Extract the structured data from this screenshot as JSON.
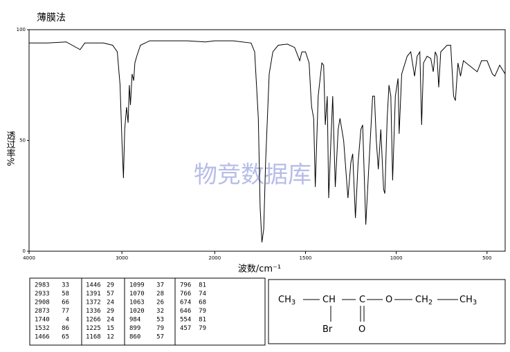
{
  "chart_data": {
    "type": "line",
    "title": "薄膜法",
    "x_label": "波数/cm⁻¹",
    "y_label": "透过率%",
    "watermark": "物竞数据库",
    "xlim": [
      4000,
      400
    ],
    "x_break": 2000,
    "xticks": [
      4000,
      3000,
      2000,
      1500,
      1000,
      500
    ],
    "ylim": [
      0,
      100
    ],
    "yticks": [
      0,
      50,
      100
    ],
    "color": "#000000",
    "x": [
      4000,
      3800,
      3600,
      3450,
      3400,
      3200,
      3100,
      3050,
      3020,
      3000,
      2983,
      2970,
      2950,
      2933,
      2920,
      2908,
      2890,
      2873,
      2860,
      2840,
      2800,
      2700,
      2500,
      2300,
      2100,
      2000,
      1900,
      1800,
      1780,
      1760,
      1750,
      1740,
      1730,
      1720,
      1700,
      1680,
      1650,
      1600,
      1560,
      1532,
      1520,
      1500,
      1480,
      1470,
      1466,
      1455,
      1446,
      1430,
      1410,
      1400,
      1391,
      1380,
      1372,
      1360,
      1350,
      1336,
      1320,
      1310,
      1290,
      1266,
      1250,
      1240,
      1225,
      1210,
      1195,
      1185,
      1168,
      1150,
      1130,
      1120,
      1110,
      1099,
      1085,
      1070,
      1063,
      1050,
      1040,
      1030,
      1020,
      1005,
      990,
      984,
      970,
      940,
      920,
      899,
      885,
      870,
      860,
      850,
      830,
      810,
      796,
      785,
      775,
      766,
      755,
      720,
      700,
      684,
      674,
      660,
      646,
      630,
      600,
      554,
      530,
      500,
      470,
      457,
      430,
      400
    ],
    "values": [
      94,
      94,
      94.5,
      91,
      94,
      94,
      93,
      90,
      75,
      50,
      33,
      55,
      65,
      58,
      75,
      66,
      80,
      77,
      85,
      88,
      93,
      95,
      95,
      95,
      94.5,
      95,
      95,
      94,
      90,
      60,
      20,
      4,
      10,
      40,
      80,
      90,
      93,
      93.5,
      92,
      86,
      90,
      90,
      85,
      70,
      65,
      60,
      29,
      70,
      85,
      84,
      57,
      70,
      24,
      50,
      70,
      29,
      55,
      60,
      50,
      24,
      40,
      44,
      15,
      40,
      55,
      57,
      12,
      40,
      70,
      70,
      50,
      37,
      55,
      28,
      26,
      60,
      75,
      70,
      32,
      70,
      78,
      53,
      80,
      88,
      90,
      79,
      88,
      90,
      57,
      85,
      88,
      87,
      81,
      90,
      88,
      74,
      90,
      93,
      93,
      70,
      68,
      85,
      79,
      86,
      84,
      81,
      86,
      86,
      80,
      79,
      84,
      80
    ]
  },
  "peak_table": {
    "columns": [
      [
        [
          "2983",
          "33"
        ],
        [
          "2933",
          "58"
        ],
        [
          "2908",
          "66"
        ],
        [
          "2873",
          "77"
        ],
        [
          "1740",
          "4"
        ],
        [
          "1532",
          "86"
        ],
        [
          "1466",
          "65"
        ]
      ],
      [
        [
          "1446",
          "29"
        ],
        [
          "1391",
          "57"
        ],
        [
          "1372",
          "24"
        ],
        [
          "1336",
          "29"
        ],
        [
          "1266",
          "24"
        ],
        [
          "1225",
          "15"
        ],
        [
          "1168",
          "12"
        ]
      ],
      [
        [
          "1099",
          "37"
        ],
        [
          "1070",
          "28"
        ],
        [
          "1063",
          "26"
        ],
        [
          "1020",
          "32"
        ],
        [
          "984",
          "53"
        ],
        [
          "899",
          "79"
        ],
        [
          "860",
          "57"
        ]
      ],
      [
        [
          "796",
          "81"
        ],
        [
          "766",
          "74"
        ],
        [
          "674",
          "68"
        ],
        [
          "646",
          "79"
        ],
        [
          "554",
          "81"
        ],
        [
          "457",
          "79"
        ]
      ]
    ]
  },
  "structure": {
    "atoms": [
      {
        "text": "CH",
        "sub": "3"
      },
      {
        "text": "CH"
      },
      {
        "text": "C"
      },
      {
        "text": "O"
      },
      {
        "text": "CH",
        "sub": "2"
      },
      {
        "text": "CH",
        "sub": "3"
      },
      {
        "text": "Br"
      },
      {
        "text": "O"
      }
    ]
  }
}
